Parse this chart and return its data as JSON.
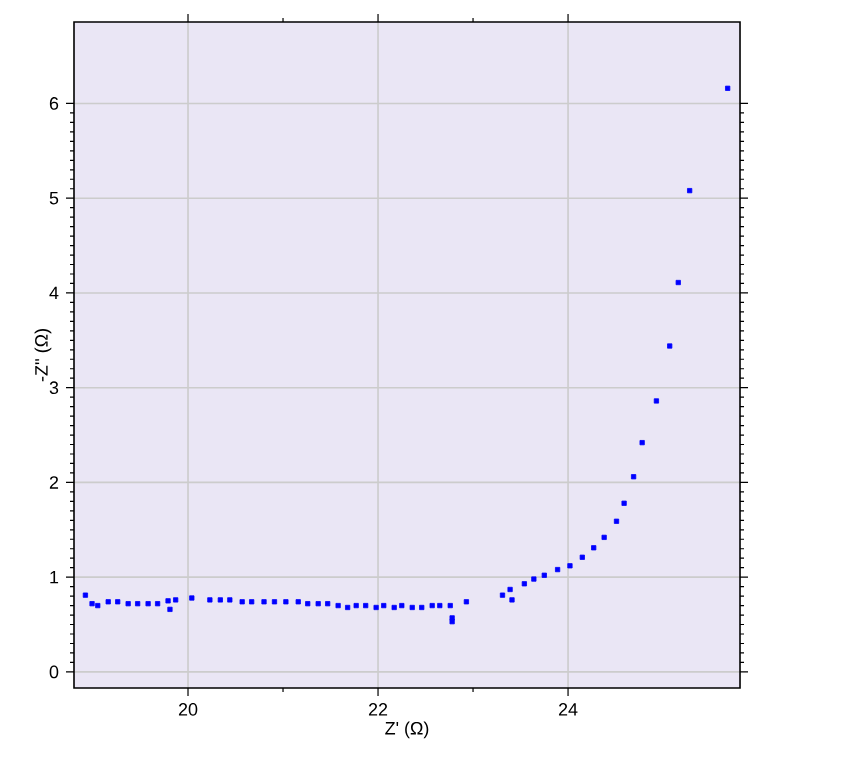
{
  "chart_data": {
    "type": "scatter",
    "xlabel": "Z' (Ω)",
    "ylabel": "-Z'' (Ω)",
    "xlim": [
      18.8,
      25.81
    ],
    "ylim": [
      -0.17,
      6.86
    ],
    "xticks": [
      20,
      22,
      24
    ],
    "yticks": [
      0,
      1,
      2,
      3,
      4,
      5,
      6
    ],
    "grid": true,
    "marker": "square",
    "series": [
      {
        "color": "#0000ff",
        "x": [
          18.92,
          18.99,
          19.05,
          19.16,
          19.26,
          19.37,
          19.47,
          19.58,
          19.68,
          19.79,
          19.81,
          19.87,
          20.04,
          20.23,
          20.34,
          20.44,
          20.57,
          20.67,
          20.8,
          20.91,
          21.03,
          21.16,
          21.26,
          21.37,
          21.47,
          21.58,
          21.68,
          21.77,
          21.87,
          21.98,
          22.06,
          22.17,
          22.25,
          22.36,
          22.46,
          22.57,
          22.65,
          22.76,
          22.78,
          22.78,
          22.93,
          23.31,
          23.39,
          23.41,
          23.54,
          23.64,
          23.75,
          23.89,
          24.02,
          24.15,
          24.27,
          24.38,
          24.51,
          24.59,
          24.69,
          24.78,
          24.93,
          25.07,
          25.16,
          25.28,
          25.68
        ],
        "values": [
          0.81,
          0.72,
          0.7,
          0.74,
          0.74,
          0.72,
          0.72,
          0.72,
          0.72,
          0.75,
          0.66,
          0.76,
          0.78,
          0.76,
          0.76,
          0.76,
          0.74,
          0.74,
          0.74,
          0.74,
          0.74,
          0.74,
          0.72,
          0.72,
          0.72,
          0.7,
          0.68,
          0.7,
          0.7,
          0.68,
          0.7,
          0.68,
          0.7,
          0.68,
          0.68,
          0.7,
          0.7,
          0.7,
          0.57,
          0.53,
          0.74,
          0.81,
          0.87,
          0.76,
          0.93,
          0.98,
          1.02,
          1.08,
          1.12,
          1.21,
          1.31,
          1.42,
          1.59,
          1.78,
          2.06,
          2.42,
          2.86,
          3.44,
          4.11,
          5.08,
          6.16
        ]
      }
    ]
  }
}
